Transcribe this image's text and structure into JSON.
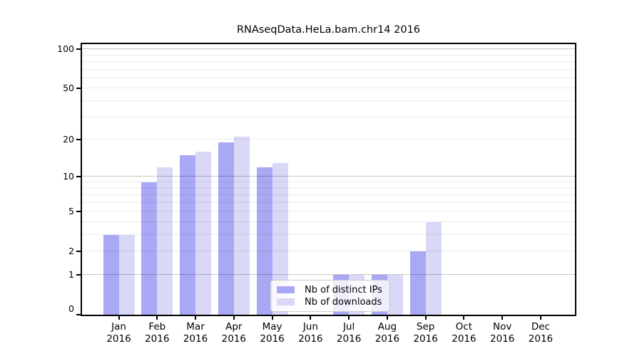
{
  "chart_data": {
    "type": "bar",
    "title": "RNAseqData.HeLa.bam.chr14 2016",
    "categories": [
      "Jan",
      "Feb",
      "Mar",
      "Apr",
      "May",
      "Jun",
      "Jul",
      "Aug",
      "Sep",
      "Oct",
      "Nov",
      "Dec"
    ],
    "year_label": "2016",
    "series": [
      {
        "name": "Nb of distinct IPs",
        "color": "#a8a8f4",
        "values": [
          3,
          9,
          15,
          19,
          12,
          0,
          1,
          1,
          2,
          0,
          0,
          0
        ]
      },
      {
        "name": "Nb of downloads",
        "color": "#d9d9f7",
        "values": [
          3,
          12,
          16,
          21,
          13,
          0,
          1,
          1,
          4,
          0,
          0,
          0
        ]
      }
    ],
    "yscale": "log1p",
    "y_tick_labels": [
      100,
      50,
      20,
      10,
      5,
      2,
      1,
      0
    ],
    "y_major_gridlines": [
      1,
      10,
      100
    ],
    "y_minor_gridlines": [
      2,
      3,
      4,
      5,
      6,
      7,
      8,
      9,
      20,
      30,
      40,
      50,
      60,
      70,
      80,
      90
    ],
    "ylim": [
      0,
      100
    ],
    "grid": true,
    "legend_position": "bottom-center"
  },
  "colors": {
    "background": "#ffffff",
    "axis": "#000000",
    "bar_dark": "#a8a8f4",
    "bar_light": "#d9d9f7"
  }
}
